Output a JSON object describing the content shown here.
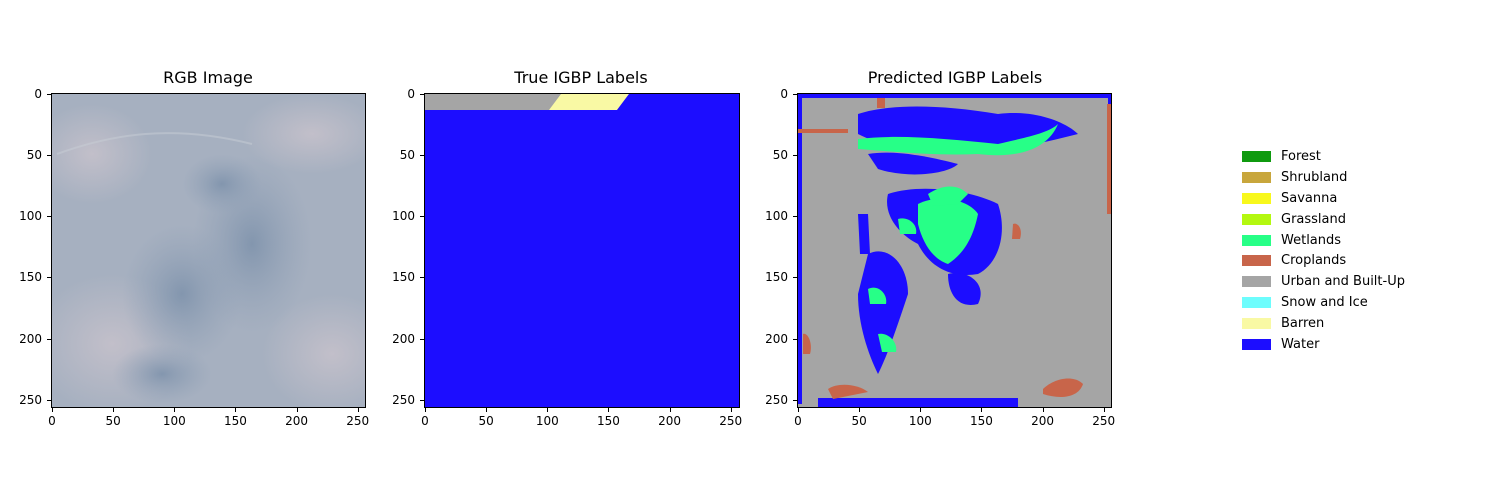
{
  "panels": [
    {
      "title": "RGB Image"
    },
    {
      "title": "True IGBP Labels"
    },
    {
      "title": "Predicted IGBP Labels"
    }
  ],
  "axis_ticks": {
    "x": [
      "0",
      "50",
      "100",
      "150",
      "200",
      "250"
    ],
    "y": [
      "0",
      "50",
      "100",
      "150",
      "200",
      "250"
    ]
  },
  "legend": [
    {
      "label": "Forest",
      "color": "#0f9a0f"
    },
    {
      "label": "Shrubland",
      "color": "#c8a63c"
    },
    {
      "label": "Savanna",
      "color": "#f8f81c"
    },
    {
      "label": "Grassland",
      "color": "#b4f810"
    },
    {
      "label": "Wetlands",
      "color": "#27ff87"
    },
    {
      "label": "Croplands",
      "color": "#c8654a"
    },
    {
      "label": "Urban and Built-Up",
      "color": "#a5a5a5"
    },
    {
      "label": "Snow and Ice",
      "color": "#6dfdfd"
    },
    {
      "label": "Barren",
      "color": "#f9f9a4"
    },
    {
      "label": "Water",
      "color": "#1c0dff"
    }
  ]
}
